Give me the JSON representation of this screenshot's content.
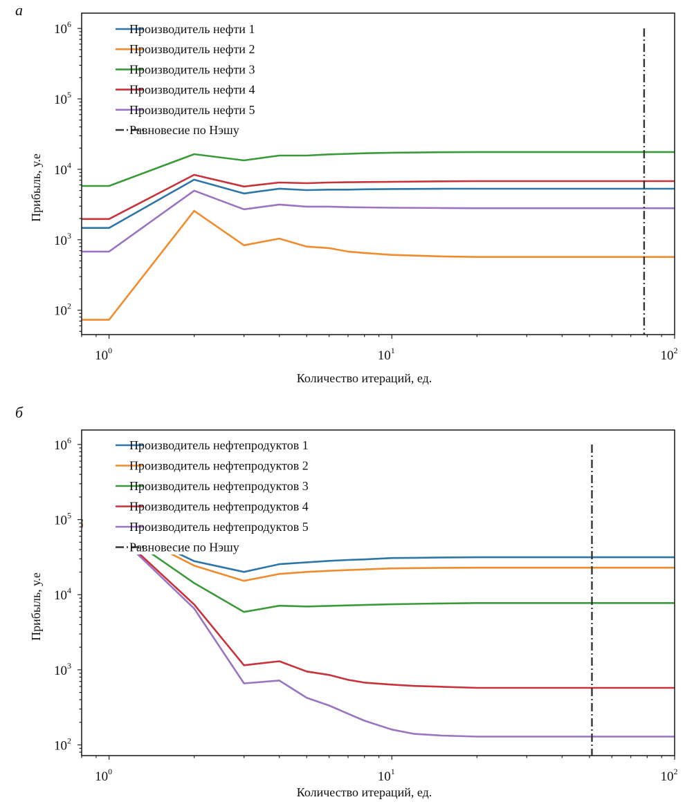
{
  "chart_data": [
    {
      "panel": "a",
      "type": "line",
      "xscale": "log",
      "yscale": "log",
      "xlabel": "Количество итераций, ед.",
      "ylabel": "Прибыль, у.е",
      "xlim": [
        0.8,
        100
      ],
      "ylim": [
        45,
        1650000
      ],
      "xticks": [
        {
          "base": "10",
          "exp": "0",
          "value": 1
        },
        {
          "base": "10",
          "exp": "1",
          "value": 10
        },
        {
          "base": "10",
          "exp": "2",
          "value": 100
        }
      ],
      "yticks": [
        {
          "base": "10",
          "exp": "2",
          "value": 100
        },
        {
          "base": "10",
          "exp": "3",
          "value": 1000
        },
        {
          "base": "10",
          "exp": "4",
          "value": 10000
        },
        {
          "base": "10",
          "exp": "5",
          "value": 100000
        },
        {
          "base": "10",
          "exp": "6",
          "value": 1000000
        }
      ],
      "grid": false,
      "legend_position": "top-left",
      "x": [
        0.8,
        1,
        2,
        3,
        4,
        5,
        6,
        7,
        8,
        10,
        15,
        20,
        30,
        50,
        100
      ],
      "series": [
        {
          "name": "Производитель нефти 1",
          "color": "#2e75a8",
          "values": [
            1470,
            1470,
            7130,
            4540,
            5310,
            5070,
            5150,
            5150,
            5200,
            5250,
            5300,
            5300,
            5300,
            5300,
            5300
          ]
        },
        {
          "name": "Производитель нефти 2",
          "color": "#f08c2e",
          "values": [
            73,
            73,
            2580,
            835,
            1040,
            800,
            760,
            680,
            650,
            610,
            580,
            570,
            570,
            570,
            570
          ]
        },
        {
          "name": "Производитель нефти 3",
          "color": "#3a9a3a",
          "values": [
            5800,
            5800,
            16400,
            13400,
            15700,
            15700,
            16300,
            16600,
            16900,
            17200,
            17500,
            17600,
            17600,
            17600,
            17600
          ]
        },
        {
          "name": "Производитель нефти 4",
          "color": "#c8323a",
          "values": [
            1970,
            1970,
            8350,
            5700,
            6500,
            6350,
            6500,
            6550,
            6600,
            6650,
            6750,
            6800,
            6800,
            6800,
            6800
          ]
        },
        {
          "name": "Производитель нефти 5",
          "color": "#9a74c0",
          "values": [
            680,
            680,
            4970,
            2700,
            3160,
            2950,
            2950,
            2900,
            2880,
            2850,
            2820,
            2800,
            2800,
            2800,
            2800
          ]
        }
      ],
      "nash": {
        "name": "Равновесие по Нэшу",
        "color": "#333333",
        "x": 78,
        "y_range": [
          45,
          1000000
        ]
      }
    },
    {
      "panel": "б",
      "type": "line",
      "xscale": "log",
      "yscale": "log",
      "xlabel": "Количество итераций, ед.",
      "ylabel": "Прибыль, у.е",
      "xlim": [
        0.8,
        100
      ],
      "ylim": [
        72,
        1560000
      ],
      "xticks": [
        {
          "base": "10",
          "exp": "0",
          "value": 1
        },
        {
          "base": "10",
          "exp": "1",
          "value": 10
        },
        {
          "base": "10",
          "exp": "2",
          "value": 100
        }
      ],
      "yticks": [
        {
          "base": "10",
          "exp": "2",
          "value": 100
        },
        {
          "base": "10",
          "exp": "3",
          "value": 1000
        },
        {
          "base": "10",
          "exp": "4",
          "value": 10000
        },
        {
          "base": "10",
          "exp": "5",
          "value": 100000
        },
        {
          "base": "10",
          "exp": "6",
          "value": 1000000
        }
      ],
      "grid": false,
      "legend_position": "top-left",
      "x": [
        0.8,
        1,
        2,
        3,
        4,
        5,
        6,
        7,
        8,
        10,
        12,
        15,
        20,
        30,
        50,
        100
      ],
      "series": [
        {
          "name": "Производитель нефтепродуктов 1",
          "color": "#2e75a8",
          "values": [
            98000,
            98000,
            28000,
            20100,
            25500,
            27000,
            28200,
            29000,
            29500,
            30800,
            31000,
            31300,
            31500,
            31500,
            31500,
            31500
          ]
        },
        {
          "name": "Производитель нефтепродуктов 2",
          "color": "#f08c2e",
          "values": [
            93000,
            93000,
            24400,
            15300,
            18900,
            20100,
            20800,
            21300,
            21700,
            22400,
            22600,
            22800,
            22900,
            22900,
            22900,
            22900
          ]
        },
        {
          "name": "Производитель нефтепродуктов 3",
          "color": "#3a9a3a",
          "values": [
            87000,
            87000,
            14300,
            5890,
            7130,
            6970,
            7100,
            7200,
            7300,
            7450,
            7550,
            7650,
            7750,
            7750,
            7750,
            7750
          ]
        },
        {
          "name": "Производитель нефтепродуктов 4",
          "color": "#c8323a",
          "values": [
            83000,
            83000,
            7430,
            1150,
            1300,
            950,
            855,
            735,
            675,
            635,
            610,
            595,
            575,
            575,
            575,
            575
          ]
        },
        {
          "name": "Производитель нефтепродуктов 5",
          "color": "#9a74c0",
          "values": [
            80000,
            80000,
            6550,
            660,
            720,
            424,
            335,
            260,
            210,
            160,
            140,
            133,
            129,
            129,
            129,
            129
          ]
        }
      ],
      "nash": {
        "name": "Равновесие по Нэшу",
        "color": "#333333",
        "x": 51,
        "y_range": [
          72,
          1000000
        ]
      }
    }
  ]
}
